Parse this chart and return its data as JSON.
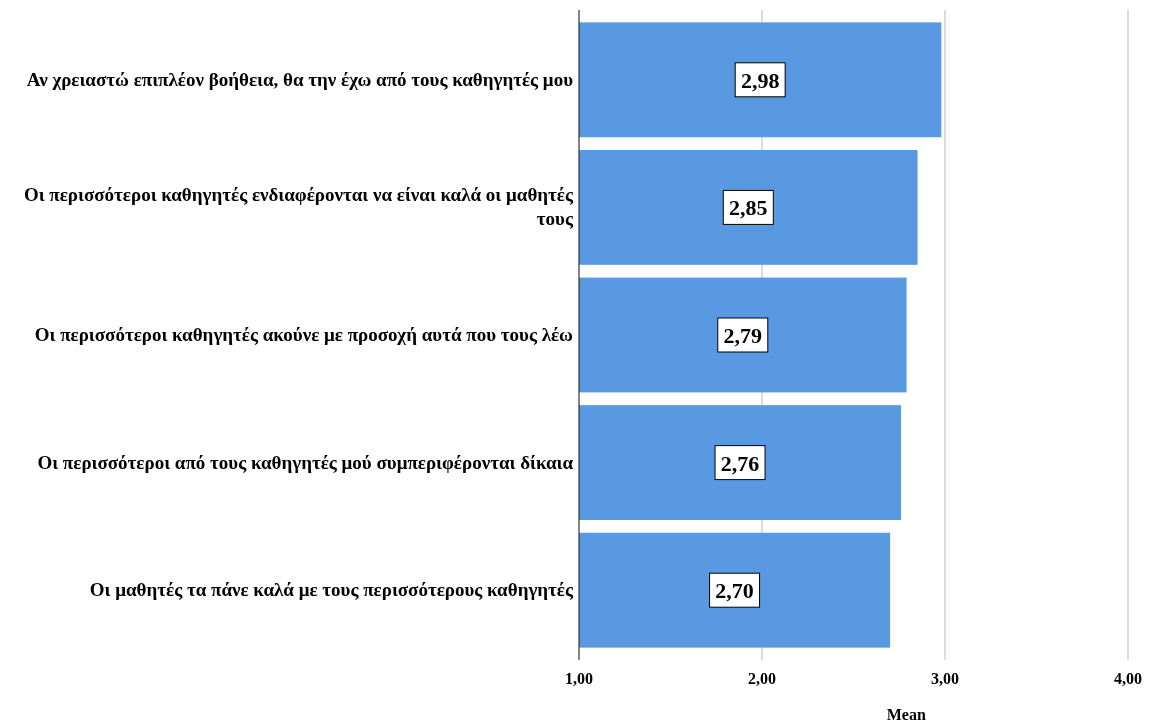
{
  "chart_data": {
    "type": "bar",
    "orientation": "horizontal",
    "xlabel": "Mean",
    "categories": [
      "Αν χρειαστώ επιπλέον βοήθεια, θα την έχω από τους καθηγητές μου",
      "Οι περισσότεροι καθηγητές ενδιαφέρονται να είναι καλά οι μαθητές τους",
      "Οι περισσότεροι καθηγητές ακούνε με προσοχή αυτά που τους λέω",
      "Οι περισσότεροι από τους καθηγητές μού συμπεριφέρονται δίκαια",
      "Οι μαθητές τα πάνε καλά με τους περισσότερους καθηγητές"
    ],
    "values": [
      2.98,
      2.85,
      2.79,
      2.76,
      2.7
    ],
    "value_labels": [
      "2,98",
      "2,85",
      "2,79",
      "2,76",
      "2,70"
    ],
    "color": "#5899e2",
    "xlim": [
      1,
      4
    ],
    "xticks": [
      {
        "value": 1,
        "label": "1,00"
      },
      {
        "value": 2,
        "label": "2,00"
      },
      {
        "value": 3,
        "label": "3,00"
      },
      {
        "value": 4,
        "label": "4,00"
      }
    ],
    "grid": "x"
  }
}
